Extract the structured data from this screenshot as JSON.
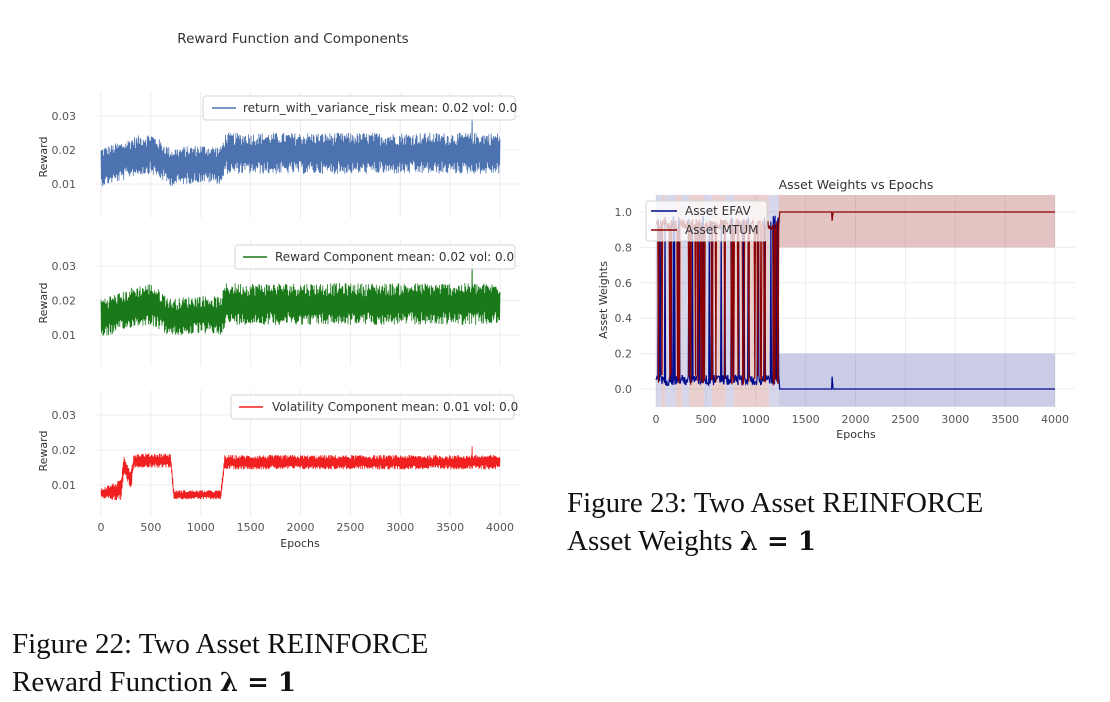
{
  "chart_data": [
    {
      "type": "line",
      "title": "Reward Function and Components",
      "xlabel": "Epochs",
      "xlim": [
        -40,
        4180
      ],
      "x_ticks": [
        0,
        500,
        1000,
        1500,
        2000,
        2500,
        3000,
        3500,
        4000
      ],
      "grid": true,
      "panels": [
        {
          "ylabel": "Reward",
          "ylim": [
            -0.007,
            0.037
          ],
          "y_ticks": [
            0.01,
            0.02,
            0.03
          ],
          "legend_position": "top-right",
          "series": [
            {
              "name": "return_with_variance_risk mean: 0.02 vol: 0.0",
              "color": "#4c72b0",
              "x": [
                0,
                250,
                300,
                500,
                700,
                1000,
                1200,
                1250,
                2000,
                3000,
                3700,
                4000
              ],
              "mean": [
                0.015,
                0.017,
                0.018,
                0.019,
                0.015,
                0.016,
                0.0155,
                0.019,
                0.019,
                0.019,
                0.019,
                0.019
              ],
              "band": [
                0.0115,
                0.0115,
                0.0115,
                0.012,
                0.011,
                0.011,
                0.011,
                0.012,
                0.012,
                0.012,
                0.012,
                0.012
              ],
              "peak": 0.035
            }
          ]
        },
        {
          "ylabel": "Reward",
          "ylim": [
            -0.007,
            0.037
          ],
          "y_ticks": [
            0.01,
            0.02,
            0.03
          ],
          "legend_position": "top-right",
          "series": [
            {
              "name": "Reward Component mean: 0.02 vol: 0.0",
              "color": "#1a7a1a",
              "x": [
                0,
                250,
                300,
                500,
                700,
                1000,
                1200,
                1250,
                2000,
                3000,
                3700,
                4000
              ],
              "mean": [
                0.015,
                0.017,
                0.018,
                0.019,
                0.015,
                0.016,
                0.0155,
                0.019,
                0.019,
                0.019,
                0.019,
                0.019
              ],
              "band": [
                0.0115,
                0.0115,
                0.0115,
                0.012,
                0.011,
                0.011,
                0.011,
                0.012,
                0.012,
                0.012,
                0.012,
                0.012
              ],
              "peak": 0.036
            }
          ]
        },
        {
          "ylabel": "Reward",
          "ylim": [
            -0.007,
            0.037
          ],
          "y_ticks": [
            0.01,
            0.02,
            0.03
          ],
          "legend_position": "top-right",
          "series": [
            {
              "name": "Volatility Component mean: 0.01 vol: 0.0",
              "color": "#f02020",
              "x": [
                0,
                200,
                230,
                300,
                330,
                700,
                730,
                1200,
                1240,
                4000
              ],
              "mean": [
                0.0075,
                0.0085,
                0.016,
                0.0115,
                0.017,
                0.017,
                0.0072,
                0.0072,
                0.0165,
                0.0165
              ],
              "band": [
                0.003,
                0.006,
                0.005,
                0.006,
                0.004,
                0.004,
                0.0025,
                0.0025,
                0.004,
                0.004
              ],
              "peak": 0.021
            }
          ]
        }
      ]
    },
    {
      "type": "line",
      "title": "Asset Weights vs Epochs",
      "xlabel": "Epochs",
      "ylabel": "Asset Weights",
      "xlim": [
        -40,
        4200
      ],
      "ylim": [
        -0.1,
        1.1
      ],
      "x_ticks": [
        0,
        500,
        1000,
        1500,
        2000,
        2500,
        3000,
        3500,
        4000
      ],
      "y_ticks": [
        0.0,
        0.2,
        0.4,
        0.6,
        0.8,
        1.0
      ],
      "grid": true,
      "legend_position": "top-left",
      "regime_switch_epoch": 1230,
      "series": [
        {
          "name": "Asset EFAV",
          "color": "#000a8c",
          "band_color": "#6b6fb8",
          "band_after_switch": [
            -0.1,
            0.2
          ],
          "steady_value": 0.0
        },
        {
          "name": "Asset MTUM",
          "color": "#8b0000",
          "band_color": "#b35454",
          "band_after_switch": [
            0.8,
            1.1
          ],
          "steady_value": 1.0
        }
      ]
    }
  ],
  "captions": {
    "fig22": {
      "line1": "Figure 22:  Two Asset REINFORCE",
      "line2_prefix": "Reward Function ",
      "line2_math": "λ = 1"
    },
    "fig23": {
      "line1": "Figure 23:  Two Asset REINFORCE",
      "line2_prefix": "Asset Weights ",
      "line2_math": "λ = 1"
    }
  }
}
